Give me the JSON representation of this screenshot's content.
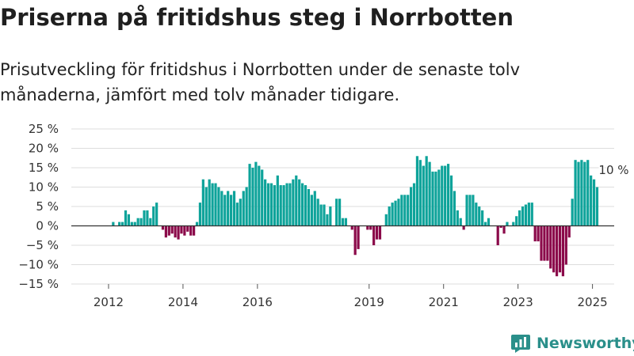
{
  "title": "Priserna på fritidshus steg i Norrbotten",
  "subtitle": "Prisutveckling för fritidshus i Norrbotten under de senaste tolv månaderna, jämfört med tolv månader tidigare.",
  "brand": {
    "name": "Newsworthy",
    "color": "#2a8f8a"
  },
  "colors": {
    "positive": "#0ea39a",
    "negative": "#8b0a4a",
    "grid": "#dddddd",
    "zero_line": "#333333"
  },
  "chart_data": {
    "type": "bar",
    "y_unit": "%",
    "ylim": [
      -15,
      25
    ],
    "y_ticks": [
      25,
      20,
      15,
      10,
      5,
      0,
      -5,
      -10,
      -15
    ],
    "y_tick_labels": [
      "25 %",
      "20 %",
      "15 %",
      "10 %",
      "5 %",
      "0 %",
      "−5 %",
      "−10 %",
      "−15 %"
    ],
    "x_tick_labels": [
      "2012",
      "2014",
      "2016",
      "2019",
      "2021",
      "2023",
      "2025"
    ],
    "x_start": "2011-01",
    "x_end": "2025-08",
    "annotation": "10 %",
    "grid": true,
    "series": [
      {
        "points": [
          [
            "2012-02",
            1
          ],
          [
            "2012-03",
            0
          ],
          [
            "2012-04",
            1
          ],
          [
            "2012-05",
            1
          ],
          [
            "2012-06",
            4
          ],
          [
            "2012-07",
            3
          ],
          [
            "2012-08",
            1
          ],
          [
            "2012-09",
            1
          ],
          [
            "2012-10",
            2
          ],
          [
            "2012-11",
            2
          ],
          [
            "2012-12",
            4
          ],
          [
            "2013-01",
            4
          ],
          [
            "2013-02",
            2
          ],
          [
            "2013-03",
            5
          ],
          [
            "2013-04",
            6
          ],
          [
            "2013-06",
            -1
          ],
          [
            "2013-07",
            -3
          ],
          [
            "2013-08",
            -2.5
          ],
          [
            "2013-09",
            -2
          ],
          [
            "2013-10",
            -3
          ],
          [
            "2013-11",
            -3.5
          ],
          [
            "2013-12",
            -2
          ],
          [
            "2014-01",
            -2.5
          ],
          [
            "2014-02",
            -1.5
          ],
          [
            "2014-03",
            -2.5
          ],
          [
            "2014-04",
            -2.5
          ],
          [
            "2014-05",
            1
          ],
          [
            "2014-06",
            6
          ],
          [
            "2014-07",
            12
          ],
          [
            "2014-08",
            10
          ],
          [
            "2014-09",
            12
          ],
          [
            "2014-10",
            11
          ],
          [
            "2014-11",
            11
          ],
          [
            "2014-12",
            10
          ],
          [
            "2015-01",
            9
          ],
          [
            "2015-02",
            8
          ],
          [
            "2015-03",
            9
          ],
          [
            "2015-04",
            8
          ],
          [
            "2015-05",
            9
          ],
          [
            "2015-06",
            6
          ],
          [
            "2015-07",
            7
          ],
          [
            "2015-08",
            9
          ],
          [
            "2015-09",
            10
          ],
          [
            "2015-10",
            16
          ],
          [
            "2015-11",
            15
          ],
          [
            "2015-12",
            16.5
          ],
          [
            "2016-01",
            15.5
          ],
          [
            "2016-02",
            14.5
          ],
          [
            "2016-03",
            12
          ],
          [
            "2016-04",
            11
          ],
          [
            "2016-05",
            11
          ],
          [
            "2016-06",
            10.5
          ],
          [
            "2016-07",
            13
          ],
          [
            "2016-08",
            10.5
          ],
          [
            "2016-09",
            10.5
          ],
          [
            "2016-10",
            11
          ],
          [
            "2016-11",
            11
          ],
          [
            "2016-12",
            12
          ],
          [
            "2017-01",
            13
          ],
          [
            "2017-02",
            12
          ],
          [
            "2017-03",
            11
          ],
          [
            "2017-04",
            10.5
          ],
          [
            "2017-05",
            9.5
          ],
          [
            "2017-06",
            8
          ],
          [
            "2017-07",
            9
          ],
          [
            "2017-08",
            7
          ],
          [
            "2017-09",
            5.5
          ],
          [
            "2017-10",
            5.5
          ],
          [
            "2017-11",
            3
          ],
          [
            "2017-12",
            5
          ],
          [
            "2018-02",
            7
          ],
          [
            "2018-03",
            7
          ],
          [
            "2018-04",
            2
          ],
          [
            "2018-05",
            2
          ],
          [
            "2018-07",
            -1
          ],
          [
            "2018-08",
            -7.5
          ],
          [
            "2018-09",
            -6
          ],
          [
            "2018-12",
            -1
          ],
          [
            "2019-01",
            -1
          ],
          [
            "2019-02",
            -5
          ],
          [
            "2019-03",
            -3.5
          ],
          [
            "2019-04",
            -3.5
          ],
          [
            "2019-06",
            3
          ],
          [
            "2019-07",
            5
          ],
          [
            "2019-08",
            6
          ],
          [
            "2019-09",
            6.5
          ],
          [
            "2019-10",
            7
          ],
          [
            "2019-11",
            8
          ],
          [
            "2019-12",
            8
          ],
          [
            "2020-01",
            8
          ],
          [
            "2020-02",
            10
          ],
          [
            "2020-03",
            11
          ],
          [
            "2020-04",
            18
          ],
          [
            "2020-05",
            17
          ],
          [
            "2020-06",
            15.5
          ],
          [
            "2020-07",
            18
          ],
          [
            "2020-08",
            16.5
          ],
          [
            "2020-09",
            14
          ],
          [
            "2020-10",
            14
          ],
          [
            "2020-11",
            14.5
          ],
          [
            "2020-12",
            15.5
          ],
          [
            "2021-01",
            15.5
          ],
          [
            "2021-02",
            16
          ],
          [
            "2021-03",
            13
          ],
          [
            "2021-04",
            9
          ],
          [
            "2021-05",
            4
          ],
          [
            "2021-06",
            2
          ],
          [
            "2021-07",
            -1
          ],
          [
            "2021-08",
            8
          ],
          [
            "2021-09",
            8
          ],
          [
            "2021-10",
            8
          ],
          [
            "2021-11",
            6
          ],
          [
            "2021-12",
            5
          ],
          [
            "2022-01",
            4
          ],
          [
            "2022-02",
            1
          ],
          [
            "2022-03",
            2
          ],
          [
            "2022-06",
            -5
          ],
          [
            "2022-07",
            -0.5
          ],
          [
            "2022-08",
            -2
          ],
          [
            "2022-09",
            1
          ],
          [
            "2022-10",
            0
          ],
          [
            "2022-11",
            1
          ],
          [
            "2022-12",
            2.5
          ],
          [
            "2023-01",
            4
          ],
          [
            "2023-02",
            5
          ],
          [
            "2023-03",
            5.5
          ],
          [
            "2023-04",
            6
          ],
          [
            "2023-05",
            6
          ],
          [
            "2023-06",
            -4
          ],
          [
            "2023-07",
            -4
          ],
          [
            "2023-08",
            -9
          ],
          [
            "2023-09",
            -9
          ],
          [
            "2023-10",
            -9
          ],
          [
            "2023-11",
            -11
          ],
          [
            "2023-12",
            -12
          ],
          [
            "2024-01",
            -13
          ],
          [
            "2024-02",
            -12
          ],
          [
            "2024-03",
            -13
          ],
          [
            "2024-04",
            -10
          ],
          [
            "2024-05",
            -3
          ],
          [
            "2024-06",
            7
          ],
          [
            "2024-07",
            17
          ],
          [
            "2024-08",
            16.5
          ],
          [
            "2024-09",
            17
          ],
          [
            "2024-10",
            16.5
          ],
          [
            "2024-11",
            17
          ],
          [
            "2024-12",
            13
          ],
          [
            "2025-01",
            12
          ],
          [
            "2025-02",
            10
          ]
        ]
      }
    ]
  }
}
